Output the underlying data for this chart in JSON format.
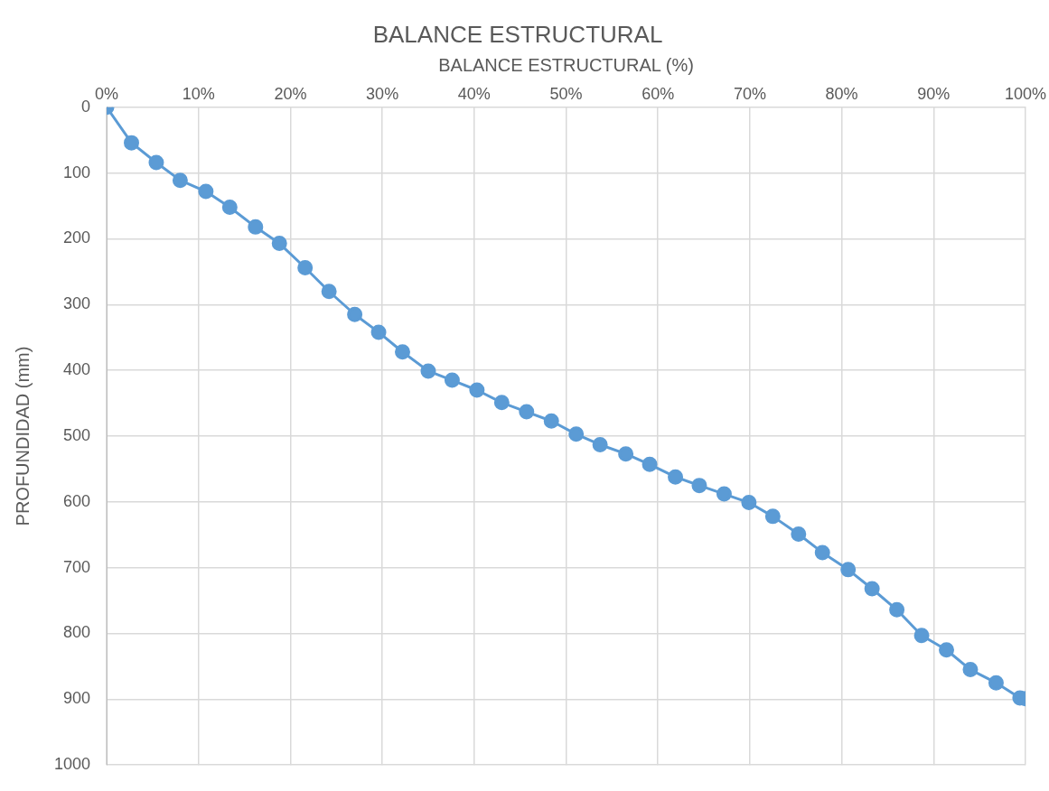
{
  "chart_data": {
    "type": "line",
    "title": "BALANCE ESTRUCTURAL",
    "xlabel": "BALANCE ESTRUCTURAL (%)",
    "ylabel": "PROFUNDIDAD (mm)",
    "x": [
      0,
      2.7,
      5.4,
      8.0,
      10.8,
      13.4,
      16.2,
      18.8,
      21.6,
      24.2,
      27.0,
      29.6,
      32.2,
      35.0,
      37.6,
      40.3,
      43.0,
      45.7,
      48.4,
      51.1,
      53.7,
      56.5,
      59.1,
      61.9,
      64.5,
      67.2,
      69.9,
      72.5,
      75.3,
      77.9,
      80.7,
      83.3,
      86.0,
      88.7,
      91.4,
      94.0,
      96.8,
      99.4,
      100
    ],
    "series": [
      {
        "color": "#5b9bd5",
        "values": [
          0,
          54,
          84,
          111,
          128,
          152,
          182,
          207,
          244,
          280,
          315,
          342,
          372,
          401,
          415,
          430,
          449,
          463,
          477,
          497,
          513,
          527,
          543,
          562,
          575,
          588,
          601,
          622,
          649,
          677,
          703,
          732,
          764,
          803,
          825,
          855,
          875,
          898,
          899
        ]
      }
    ],
    "xlim": [
      0,
      100
    ],
    "xticks": [
      {
        "value": 0,
        "label": "0%"
      },
      {
        "value": 10,
        "label": "10%"
      },
      {
        "value": 20,
        "label": "20%"
      },
      {
        "value": 30,
        "label": "30%"
      },
      {
        "value": 40,
        "label": "40%"
      },
      {
        "value": 50,
        "label": "50%"
      },
      {
        "value": 60,
        "label": "60%"
      },
      {
        "value": 70,
        "label": "70%"
      },
      {
        "value": 80,
        "label": "80%"
      },
      {
        "value": 90,
        "label": "90%"
      },
      {
        "value": 100,
        "label": "100%"
      }
    ],
    "ylim": [
      1000,
      0
    ],
    "yticks": [
      0,
      100,
      200,
      300,
      400,
      500,
      600,
      700,
      800,
      900,
      1000
    ],
    "grid": true,
    "legend": false,
    "marker": "circle",
    "line_style": "solid"
  }
}
